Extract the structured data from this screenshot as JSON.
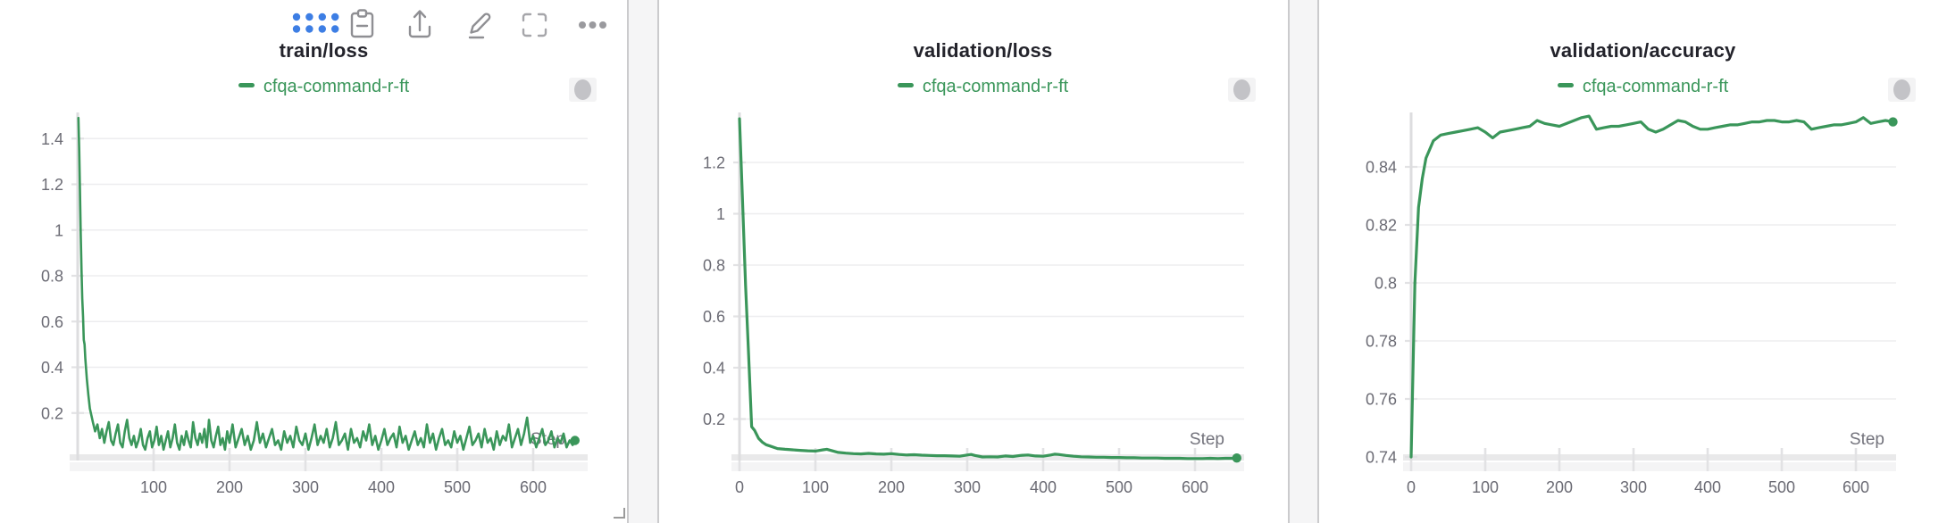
{
  "colors": {
    "run_green": "#3a965a",
    "toolbar_blue": "#3d7ee4",
    "icon_gray": "#8f8f93",
    "panel_border": "#cbcbcd"
  },
  "step_axis_label": "Step",
  "toolbar": {
    "icons": [
      {
        "name": "drag-handle-grid"
      },
      {
        "name": "clipboard"
      },
      {
        "name": "share-export"
      },
      {
        "name": "edit-pencil"
      },
      {
        "name": "fullscreen"
      },
      {
        "name": "overflow-menu"
      }
    ]
  },
  "panels": [
    {
      "pill": "run-selector"
    },
    {
      "pill": "run-selector"
    },
    {
      "pill": "run-selector"
    }
  ],
  "chart_data": [
    {
      "type": "line",
      "title": "train/loss",
      "xlabel": "Step",
      "ylabel": "",
      "xlim": [
        0,
        660
      ],
      "ylim": [
        0,
        1.52
      ],
      "grid": true,
      "legend_position": "top",
      "xticks": {
        "values": [
          100,
          200,
          300,
          400,
          500,
          600
        ],
        "labels": [
          "100",
          "200",
          "300",
          "400",
          "500",
          "600"
        ]
      },
      "yticks": {
        "values": [
          0.2,
          0.4,
          0.6,
          0.8,
          1.0,
          1.2,
          1.4
        ],
        "labels": [
          "0.2",
          "0.4",
          "0.6",
          "0.8",
          "1",
          "1.2",
          "1.4"
        ]
      },
      "series": [
        {
          "name": "cfqa-command-r-ft",
          "x": [
            1,
            2,
            3,
            4,
            5,
            6,
            7,
            8,
            9,
            10,
            12,
            14,
            16,
            18,
            20,
            23,
            26,
            29,
            32,
            35,
            38,
            41,
            44,
            47,
            50,
            53,
            56,
            59,
            62,
            65,
            68,
            71,
            74,
            77,
            80,
            83,
            86,
            89,
            92,
            95,
            98,
            101,
            104,
            107,
            110,
            113,
            116,
            119,
            122,
            125,
            128,
            131,
            134,
            137,
            140,
            143,
            146,
            149,
            152,
            155,
            158,
            161,
            164,
            167,
            170,
            173,
            176,
            179,
            182,
            185,
            188,
            191,
            194,
            197,
            200,
            204,
            208,
            212,
            216,
            220,
            224,
            228,
            232,
            236,
            240,
            244,
            248,
            252,
            256,
            260,
            264,
            268,
            272,
            276,
            280,
            284,
            288,
            292,
            296,
            300,
            304,
            308,
            312,
            316,
            320,
            324,
            328,
            332,
            336,
            340,
            344,
            348,
            352,
            356,
            360,
            364,
            368,
            372,
            376,
            380,
            384,
            388,
            392,
            396,
            400,
            404,
            408,
            412,
            416,
            420,
            424,
            428,
            432,
            436,
            440,
            444,
            448,
            452,
            456,
            460,
            464,
            468,
            472,
            476,
            480,
            484,
            488,
            492,
            496,
            500,
            504,
            508,
            512,
            516,
            520,
            524,
            528,
            532,
            536,
            540,
            544,
            548,
            552,
            556,
            560,
            564,
            568,
            572,
            576,
            580,
            584,
            588,
            592,
            596,
            600,
            604,
            608,
            612,
            616,
            620,
            624,
            628,
            632,
            636,
            640,
            644,
            648,
            652,
            655
          ],
          "y": [
            1.49,
            1.35,
            1.18,
            0.98,
            0.82,
            0.7,
            0.62,
            0.52,
            0.5,
            0.44,
            0.35,
            0.28,
            0.22,
            0.19,
            0.16,
            0.12,
            0.15,
            0.09,
            0.13,
            0.07,
            0.12,
            0.16,
            0.08,
            0.06,
            0.11,
            0.15,
            0.07,
            0.05,
            0.12,
            0.17,
            0.09,
            0.06,
            0.1,
            0.05,
            0.08,
            0.13,
            0.06,
            0.04,
            0.09,
            0.12,
            0.05,
            0.08,
            0.14,
            0.06,
            0.1,
            0.04,
            0.08,
            0.12,
            0.05,
            0.09,
            0.15,
            0.07,
            0.04,
            0.1,
            0.06,
            0.12,
            0.08,
            0.05,
            0.16,
            0.09,
            0.06,
            0.11,
            0.07,
            0.13,
            0.05,
            0.17,
            0.08,
            0.05,
            0.1,
            0.14,
            0.06,
            0.09,
            0.04,
            0.12,
            0.07,
            0.15,
            0.05,
            0.09,
            0.13,
            0.06,
            0.1,
            0.04,
            0.08,
            0.16,
            0.07,
            0.11,
            0.05,
            0.09,
            0.13,
            0.06,
            0.08,
            0.04,
            0.12,
            0.07,
            0.1,
            0.05,
            0.14,
            0.08,
            0.06,
            0.11,
            0.04,
            0.09,
            0.15,
            0.06,
            0.1,
            0.07,
            0.13,
            0.05,
            0.09,
            0.16,
            0.06,
            0.08,
            0.11,
            0.04,
            0.13,
            0.07,
            0.09,
            0.05,
            0.12,
            0.08,
            0.15,
            0.06,
            0.1,
            0.04,
            0.08,
            0.13,
            0.06,
            0.09,
            0.11,
            0.05,
            0.14,
            0.07,
            0.1,
            0.04,
            0.08,
            0.12,
            0.06,
            0.09,
            0.05,
            0.15,
            0.07,
            0.11,
            0.04,
            0.09,
            0.13,
            0.06,
            0.08,
            0.05,
            0.12,
            0.07,
            0.1,
            0.04,
            0.09,
            0.14,
            0.06,
            0.08,
            0.11,
            0.05,
            0.13,
            0.07,
            0.09,
            0.04,
            0.12,
            0.06,
            0.1,
            0.08,
            0.15,
            0.05,
            0.09,
            0.13,
            0.06,
            0.11,
            0.18,
            0.07,
            0.1,
            0.05,
            0.09,
            0.13,
            0.06,
            0.08,
            0.12,
            0.05,
            0.09,
            0.07,
            0.11,
            0.05,
            0.08,
            0.06,
            0.08
          ]
        }
      ]
    },
    {
      "type": "line",
      "title": "validation/loss",
      "xlabel": "Step",
      "ylabel": "",
      "xlim": [
        0,
        660
      ],
      "ylim": [
        0,
        1.4
      ],
      "grid": true,
      "legend_position": "top",
      "xticks": {
        "values": [
          0,
          100,
          200,
          300,
          400,
          500,
          600
        ],
        "labels": [
          "0",
          "100",
          "200",
          "300",
          "400",
          "500",
          "600"
        ]
      },
      "yticks": {
        "values": [
          0.2,
          0.4,
          0.6,
          0.8,
          1.0,
          1.2
        ],
        "labels": [
          "0.2",
          "0.4",
          "0.6",
          "0.8",
          "1",
          "1.2"
        ]
      },
      "series": [
        {
          "name": "cfqa-command-r-ft",
          "x": [
            0,
            4,
            8,
            12,
            16,
            20,
            25,
            30,
            35,
            40,
            50,
            60,
            70,
            80,
            90,
            100,
            110,
            115,
            120,
            130,
            140,
            150,
            160,
            170,
            180,
            190,
            200,
            210,
            220,
            230,
            240,
            250,
            260,
            270,
            280,
            290,
            300,
            305,
            310,
            320,
            330,
            340,
            350,
            360,
            370,
            380,
            390,
            400,
            410,
            415,
            420,
            430,
            440,
            450,
            460,
            470,
            480,
            490,
            500,
            510,
            520,
            530,
            540,
            550,
            560,
            570,
            580,
            590,
            600,
            610,
            620,
            630,
            640,
            650,
            655
          ],
          "y": [
            1.37,
            1.05,
            0.72,
            0.45,
            0.17,
            0.155,
            0.125,
            0.11,
            0.1,
            0.095,
            0.085,
            0.082,
            0.08,
            0.078,
            0.076,
            0.075,
            0.08,
            0.082,
            0.078,
            0.07,
            0.067,
            0.065,
            0.064,
            0.066,
            0.064,
            0.063,
            0.065,
            0.062,
            0.06,
            0.061,
            0.059,
            0.058,
            0.057,
            0.057,
            0.056,
            0.055,
            0.06,
            0.062,
            0.058,
            0.052,
            0.053,
            0.052,
            0.056,
            0.054,
            0.058,
            0.06,
            0.056,
            0.055,
            0.06,
            0.063,
            0.062,
            0.058,
            0.055,
            0.053,
            0.052,
            0.051,
            0.051,
            0.05,
            0.05,
            0.049,
            0.049,
            0.048,
            0.048,
            0.048,
            0.047,
            0.047,
            0.047,
            0.046,
            0.046,
            0.046,
            0.047,
            0.046,
            0.047,
            0.047,
            0.048
          ]
        }
      ]
    },
    {
      "type": "line",
      "title": "validation/accuracy",
      "xlabel": "Step",
      "ylabel": "",
      "xlim": [
        0,
        660
      ],
      "ylim": [
        0.74,
        0.859
      ],
      "grid": true,
      "legend_position": "top",
      "xticks": {
        "values": [
          0,
          100,
          200,
          300,
          400,
          500,
          600
        ],
        "labels": [
          "0",
          "100",
          "200",
          "300",
          "400",
          "500",
          "600"
        ]
      },
      "yticks": {
        "values": [
          0.74,
          0.76,
          0.78,
          0.8,
          0.82,
          0.84
        ],
        "labels": [
          "0.74",
          "0.76",
          "0.78",
          "0.8",
          "0.82",
          "0.84"
        ]
      },
      "series": [
        {
          "name": "cfqa-command-r-ft",
          "x": [
            0,
            5,
            10,
            15,
            20,
            30,
            40,
            50,
            60,
            70,
            80,
            90,
            100,
            110,
            120,
            130,
            140,
            150,
            160,
            170,
            180,
            190,
            200,
            210,
            220,
            230,
            240,
            250,
            260,
            270,
            280,
            290,
            300,
            310,
            320,
            330,
            340,
            350,
            360,
            370,
            380,
            390,
            400,
            410,
            420,
            430,
            440,
            450,
            460,
            470,
            480,
            490,
            500,
            510,
            520,
            530,
            540,
            550,
            560,
            570,
            580,
            590,
            600,
            610,
            620,
            630,
            640,
            650
          ],
          "y": [
            0.74,
            0.8,
            0.826,
            0.836,
            0.843,
            0.849,
            0.851,
            0.8515,
            0.852,
            0.8525,
            0.853,
            0.8535,
            0.852,
            0.85,
            0.852,
            0.8525,
            0.853,
            0.8535,
            0.854,
            0.856,
            0.855,
            0.8545,
            0.854,
            0.855,
            0.856,
            0.857,
            0.8575,
            0.853,
            0.8535,
            0.854,
            0.854,
            0.8545,
            0.855,
            0.8555,
            0.853,
            0.852,
            0.853,
            0.8545,
            0.856,
            0.8555,
            0.854,
            0.853,
            0.853,
            0.8535,
            0.854,
            0.8545,
            0.8545,
            0.855,
            0.8555,
            0.8555,
            0.856,
            0.856,
            0.8555,
            0.8555,
            0.856,
            0.8555,
            0.853,
            0.8535,
            0.854,
            0.8545,
            0.8545,
            0.855,
            0.8555,
            0.857,
            0.855,
            0.8555,
            0.856,
            0.8555
          ]
        }
      ]
    }
  ]
}
